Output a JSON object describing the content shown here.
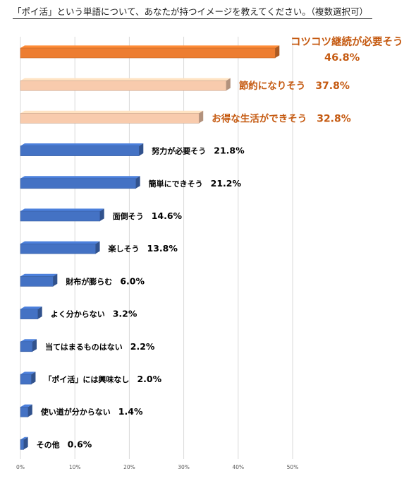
{
  "chart_data": {
    "type": "bar",
    "orientation": "horizontal",
    "title": "「ポイ活」という単語について、あなたが持つイメージを教えてください。（複数選択可）",
    "xlabel": "",
    "ylabel": "",
    "xlim": [
      0,
      50
    ],
    "x_ticks": [
      "0%",
      "10%",
      "20%",
      "30%",
      "40%",
      "50%"
    ],
    "grid": "vertical",
    "legend": "none",
    "colors": {
      "top": "#ED7D31",
      "highlight": "#F8CBAD",
      "default": "#4472C4",
      "label_highlight": "#C55A11",
      "label_default": "#000000"
    },
    "categories": [
      "コツコツ継続が必要そう",
      "節約になりそう",
      "お得な生活ができそう",
      "努力が必要そう",
      "簡単にできそう",
      "面倒そう",
      "楽しそう",
      "財布が膨らむ",
      "よく分からない",
      "当てはまるものはない",
      "「ポイ活」には興味なし",
      "使い道が分からない",
      "その他"
    ],
    "values": [
      46.8,
      37.8,
      32.8,
      21.8,
      21.2,
      14.6,
      13.8,
      6.0,
      3.2,
      2.2,
      2.0,
      1.4,
      0.6
    ],
    "value_labels": [
      "46.8%",
      "37.8%",
      "32.8%",
      "21.8%",
      "21.2%",
      "14.6%",
      "13.8%",
      "6.0%",
      "3.2%",
      "2.2%",
      "2.0%",
      "1.4%",
      "0.6%"
    ],
    "bar_style": [
      "top",
      "highlight",
      "highlight",
      "default",
      "default",
      "default",
      "default",
      "default",
      "default",
      "default",
      "default",
      "default",
      "default"
    ]
  }
}
